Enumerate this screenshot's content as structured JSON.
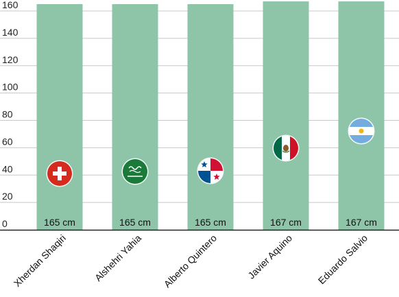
{
  "chart_data": {
    "type": "bar",
    "title": "",
    "xlabel": "",
    "ylabel": "",
    "categories": [
      "Xherdan Shaqiri",
      "Alshehri Yahia",
      "Alberto Quintero",
      "Javier Aquino",
      "Eduardo Salvio"
    ],
    "values": [
      165,
      165,
      165,
      167,
      167
    ],
    "data_labels": [
      "165 cm",
      "165 cm",
      "165 cm",
      "167 cm",
      "167 cm"
    ],
    "flags": [
      "switzerland-flag",
      "saudi-arabia-flag",
      "panama-flag",
      "mexico-flag",
      "argentina-flag"
    ],
    "ylim": [
      0,
      170
    ],
    "yticks": [
      0,
      20,
      40,
      60,
      80,
      100,
      120,
      140,
      160
    ],
    "grid": true,
    "bar_color": "#8ec5a8",
    "axis_color": "#222222"
  }
}
